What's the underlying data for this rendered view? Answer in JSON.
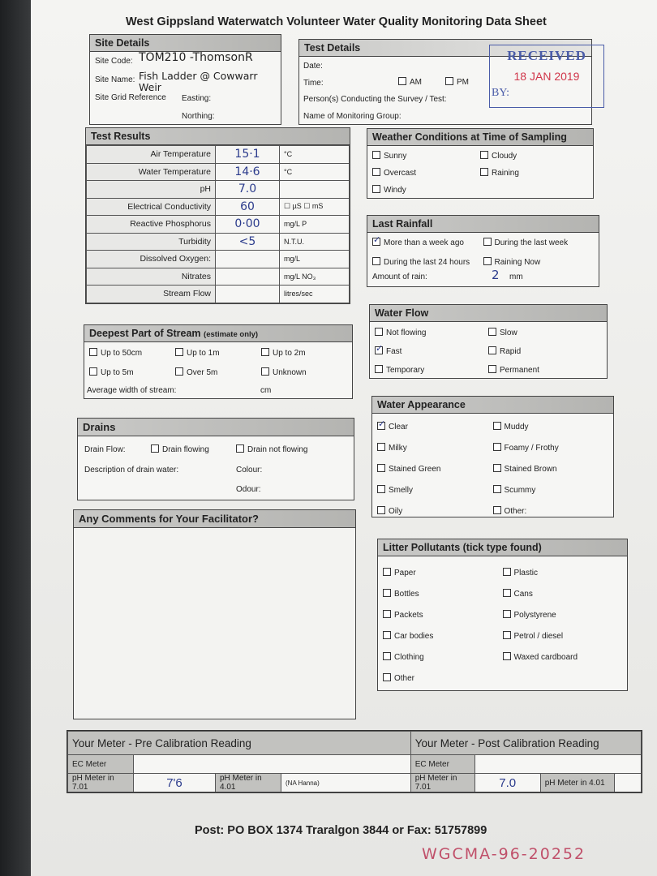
{
  "title": "West Gippsland Waterwatch Volunteer Water Quality Monitoring Data Sheet",
  "site": {
    "header": "Site Details",
    "code_label": "Site Code:",
    "code_value": "TOM210 -ThomsonR",
    "name_label": "Site Name:",
    "name_value": "Fish Ladder @ Cowwarr Weir",
    "grid_label": "Site Grid Reference",
    "easting_label": "Easting:",
    "northing_label": "Northing:"
  },
  "test": {
    "header": "Test Details",
    "date_label": "Date:",
    "time_label": "Time:",
    "am": "AM",
    "pm": "PM",
    "persons_label": "Person(s) Conducting the Survey / Test:",
    "group_label": "Name of Monitoring Group:"
  },
  "stamp": {
    "received": "RECEIVED",
    "date": "18 JAN 2019",
    "by": "BY:"
  },
  "results": {
    "header": "Test Results",
    "rows": [
      {
        "label": "Air Temperature",
        "value": "15·1",
        "unit": "°C"
      },
      {
        "label": "Water Temperature",
        "value": "14·6",
        "unit": "°C"
      },
      {
        "label": "pH",
        "value": "7.0",
        "unit": ""
      },
      {
        "label": "Electrical Conductivity",
        "value": "60",
        "unit": "☐ µS  ☐ mS"
      },
      {
        "label": "Reactive Phosphorus",
        "value": "0·00",
        "unit": "mg/L P"
      },
      {
        "label": "Turbidity",
        "value": "<5",
        "unit": "N.T.U."
      },
      {
        "label": "Dissolved Oxygen:",
        "value": "",
        "unit": "mg/L"
      },
      {
        "label": "Nitrates",
        "value": "",
        "unit": "mg/L NO₃"
      },
      {
        "label": "Stream Flow",
        "value": "",
        "unit": "litres/sec"
      }
    ]
  },
  "weather": {
    "header": "Weather Conditions at Time of Sampling",
    "items": [
      {
        "label": "Sunny",
        "checked": false
      },
      {
        "label": "Cloudy",
        "checked": false
      },
      {
        "label": "Overcast",
        "checked": false
      },
      {
        "label": "Raining",
        "checked": false
      },
      {
        "label": "Windy",
        "checked": false
      }
    ]
  },
  "rainfall": {
    "header": "Last Rainfall",
    "items": [
      {
        "label": "More than a week ago",
        "checked": true
      },
      {
        "label": "During the last week",
        "checked": false
      },
      {
        "label": "During the last 24 hours",
        "checked": false
      },
      {
        "label": "Raining Now",
        "checked": false
      }
    ],
    "amount_label": "Amount of rain:",
    "amount_value": "2",
    "amount_unit": "mm"
  },
  "flow": {
    "header": "Water Flow",
    "items": [
      {
        "label": "Not flowing",
        "checked": false
      },
      {
        "label": "Slow",
        "checked": false
      },
      {
        "label": "Fast",
        "checked": true
      },
      {
        "label": "Rapid",
        "checked": false
      },
      {
        "label": "Temporary",
        "checked": false
      },
      {
        "label": "Permanent",
        "checked": false
      }
    ]
  },
  "deep": {
    "header": "Deepest Part of Stream",
    "header_note": "(estimate only)",
    "items": [
      {
        "label": "Up to 50cm",
        "checked": false
      },
      {
        "label": "Up to 1m",
        "checked": false
      },
      {
        "label": "Up to 2m",
        "checked": false
      },
      {
        "label": "Up to 5m",
        "checked": false
      },
      {
        "label": "Over 5m",
        "checked": false
      },
      {
        "label": "Unknown",
        "checked": false
      }
    ],
    "width_label": "Average width of stream:",
    "width_unit": "cm"
  },
  "drains": {
    "header": "Drains",
    "flow_label": "Drain Flow:",
    "flowing": "Drain flowing",
    "not_flowing": "Drain not flowing",
    "desc_label": "Description of drain water:",
    "colour_label": "Colour:",
    "odour_label": "Odour:"
  },
  "appearance": {
    "header": "Water Appearance",
    "items": [
      {
        "label": "Clear",
        "checked": true
      },
      {
        "label": "Muddy",
        "checked": false
      },
      {
        "label": "Milky",
        "checked": false
      },
      {
        "label": "Foamy / Frothy",
        "checked": false
      },
      {
        "label": "Stained Green",
        "checked": false
      },
      {
        "label": "Stained Brown",
        "checked": false
      },
      {
        "label": "Smelly",
        "checked": false
      },
      {
        "label": "Scummy",
        "checked": false
      },
      {
        "label": "Oily",
        "checked": false
      },
      {
        "label": "Other:",
        "checked": false
      }
    ]
  },
  "comments": {
    "header": "Any Comments for Your Facilitator?"
  },
  "litter": {
    "header": "Litter Pollutants (tick type found)",
    "items": [
      {
        "label": "Paper",
        "checked": false
      },
      {
        "label": "Plastic",
        "checked": false
      },
      {
        "label": "Bottles",
        "checked": false
      },
      {
        "label": "Cans",
        "checked": false
      },
      {
        "label": "Packets",
        "checked": false
      },
      {
        "label": "Polystyrene",
        "checked": false
      },
      {
        "label": "Car bodies",
        "checked": false
      },
      {
        "label": "Petrol / diesel",
        "checked": false
      },
      {
        "label": "Clothing",
        "checked": false
      },
      {
        "label": "Waxed cardboard",
        "checked": false
      },
      {
        "label": "Other",
        "checked": false
      }
    ]
  },
  "meter": {
    "pre_header": "Your Meter - Pre Calibration Reading",
    "post_header": "Your Meter - Post Calibration Reading",
    "ec": "EC Meter",
    "ph701": "pH Meter in 7.01",
    "ph401": "pH Meter in 4.01",
    "pre_701_value": "7'6",
    "pre_note": "(NA Hanna)",
    "post_701_value": "7.0"
  },
  "footer": {
    "post": "Post: PO BOX 1374 Traralgon 3844 or Fax: 51757899",
    "ref": "WGCMA-96-20252"
  }
}
